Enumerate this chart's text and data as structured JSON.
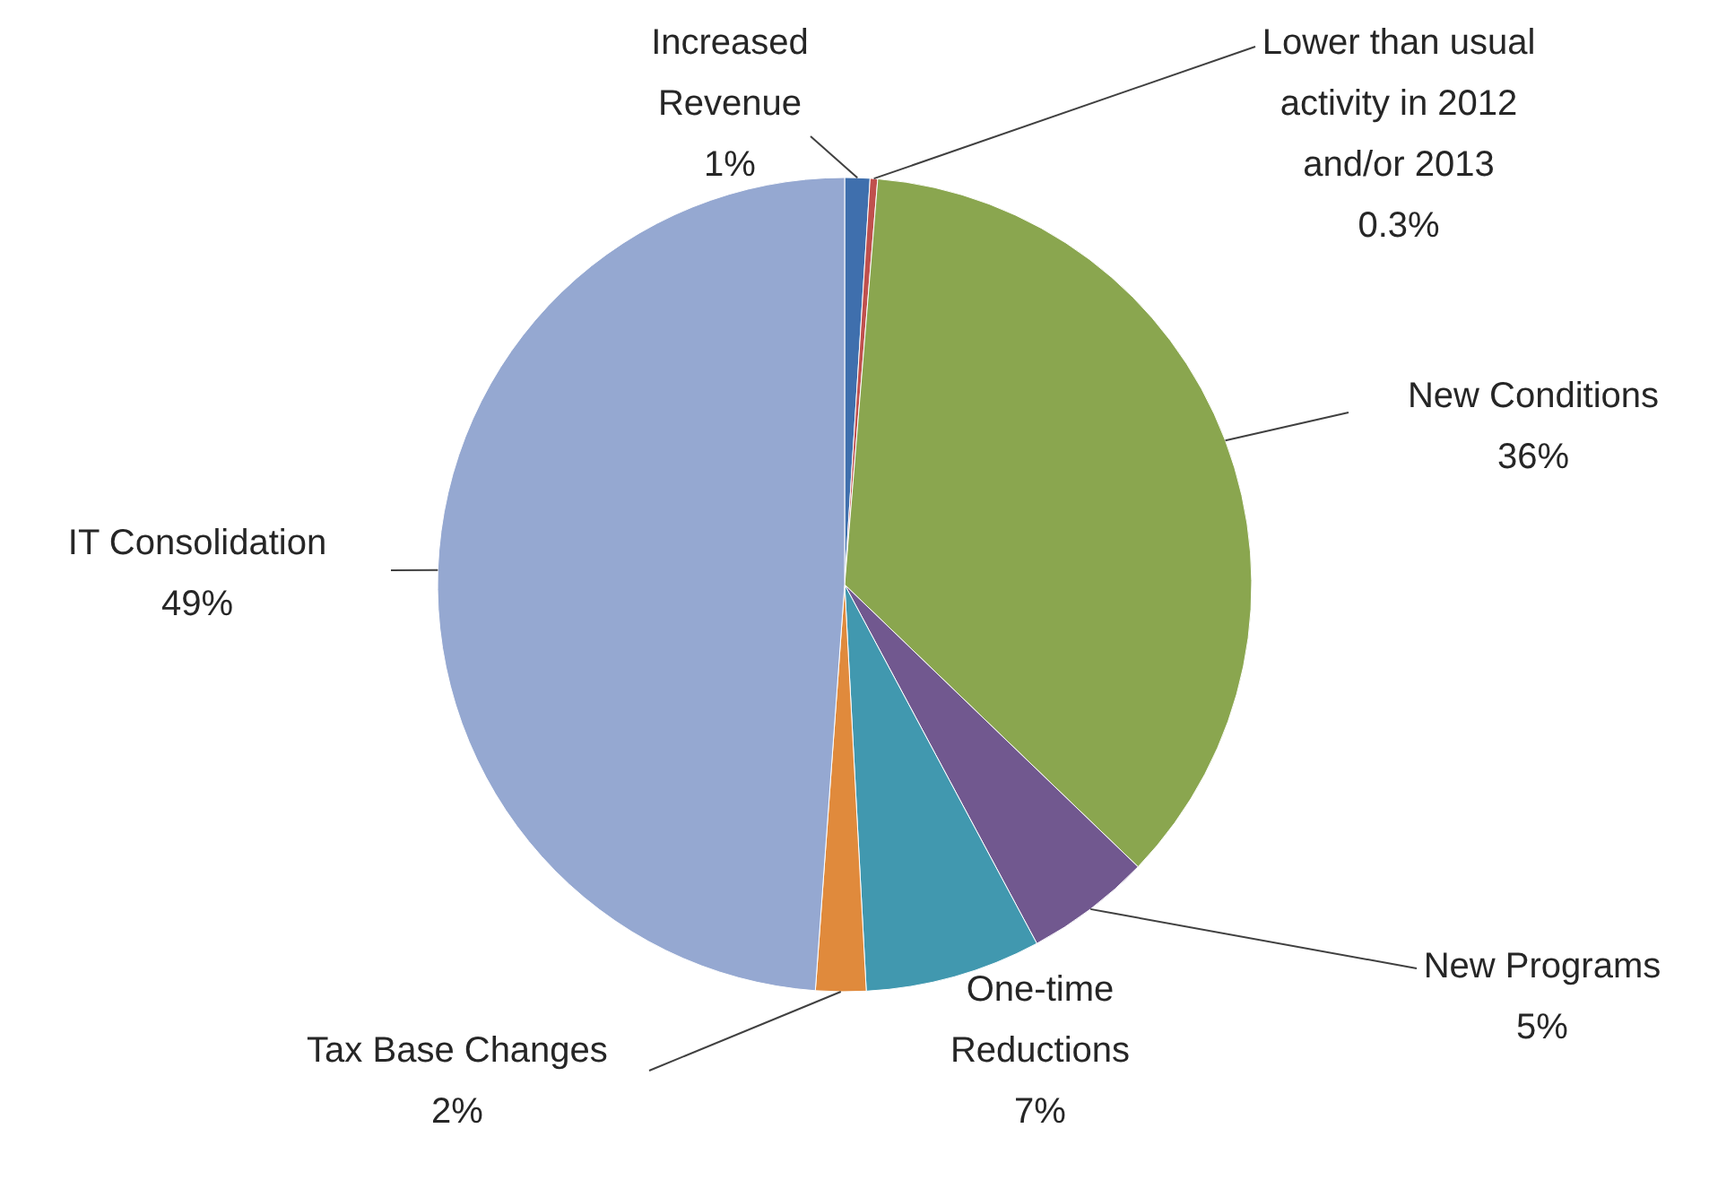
{
  "chart_data": {
    "type": "pie",
    "categories": [
      "Increased Revenue",
      "Lower than usual activity in 2012 and/or 2013",
      "New Conditions",
      "New Programs",
      "One-time Reductions",
      "Tax Base Changes",
      "IT Consolidation"
    ],
    "values": [
      1,
      0.3,
      36,
      5,
      7,
      2,
      49
    ],
    "value_labels": [
      "1%",
      "0.3%",
      "36%",
      "5%",
      "7%",
      "2%",
      "49%"
    ],
    "colors": [
      "#3f6fad",
      "#c0504d",
      "#8aa64f",
      "#71588f",
      "#4198af",
      "#e08a3c",
      "#95a8d1"
    ]
  }
}
